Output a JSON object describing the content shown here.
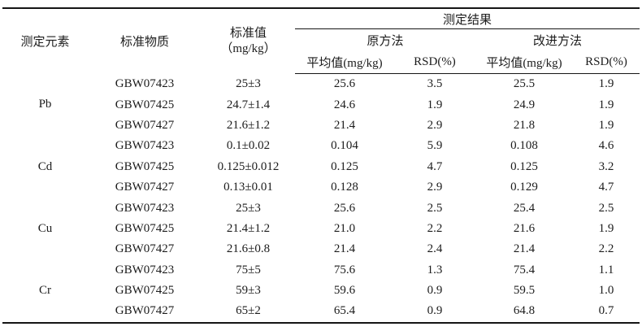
{
  "table": {
    "header": {
      "col_element": "测定元素",
      "col_material": "标准物质",
      "col_standard_line1": "标准值",
      "col_standard_line2": "（mg/kg）",
      "results_group": "测定结果",
      "method_original": "原方法",
      "method_improved": "改进方法",
      "col_mean": "平均值(mg/kg)",
      "col_rsd": "RSD(%)"
    },
    "groups": [
      {
        "element": "Pb",
        "rows": [
          {
            "material": "GBW07423",
            "standard": "25±3",
            "orig_mean": "25.6",
            "orig_rsd": "3.5",
            "impr_mean": "25.5",
            "impr_rsd": "1.9"
          },
          {
            "material": "GBW07425",
            "standard": "24.7±1.4",
            "orig_mean": "24.6",
            "orig_rsd": "1.9",
            "impr_mean": "24.9",
            "impr_rsd": "1.9"
          },
          {
            "material": "GBW07427",
            "standard": "21.6±1.2",
            "orig_mean": "21.4",
            "orig_rsd": "2.9",
            "impr_mean": "21.8",
            "impr_rsd": "1.9"
          }
        ]
      },
      {
        "element": "Cd",
        "rows": [
          {
            "material": "GBW07423",
            "standard": "0.1±0.02",
            "orig_mean": "0.104",
            "orig_rsd": "5.9",
            "impr_mean": "0.108",
            "impr_rsd": "4.6"
          },
          {
            "material": "GBW07425",
            "standard": "0.125±0.012",
            "orig_mean": "0.125",
            "orig_rsd": "4.7",
            "impr_mean": "0.125",
            "impr_rsd": "3.2"
          },
          {
            "material": "GBW07427",
            "standard": "0.13±0.01",
            "orig_mean": "0.128",
            "orig_rsd": "2.9",
            "impr_mean": "0.129",
            "impr_rsd": "4.7"
          }
        ]
      },
      {
        "element": "Cu",
        "rows": [
          {
            "material": "GBW07423",
            "standard": "25±3",
            "orig_mean": "25.6",
            "orig_rsd": "2.5",
            "impr_mean": "25.4",
            "impr_rsd": "2.5"
          },
          {
            "material": "GBW07425",
            "standard": "21.4±1.2",
            "orig_mean": "21.0",
            "orig_rsd": "2.2",
            "impr_mean": "21.6",
            "impr_rsd": "1.9"
          },
          {
            "material": "GBW07427",
            "standard": "21.6±0.8",
            "orig_mean": "21.4",
            "orig_rsd": "2.4",
            "impr_mean": "21.4",
            "impr_rsd": "2.2"
          }
        ]
      },
      {
        "element": "Cr",
        "rows": [
          {
            "material": "GBW07423",
            "standard": "75±5",
            "orig_mean": "75.6",
            "orig_rsd": "1.3",
            "impr_mean": "75.4",
            "impr_rsd": "1.1"
          },
          {
            "material": "GBW07425",
            "standard": "59±3",
            "orig_mean": "59.6",
            "orig_rsd": "0.9",
            "impr_mean": "59.5",
            "impr_rsd": "1.0"
          },
          {
            "material": "GBW07427",
            "standard": "65±2",
            "orig_mean": "65.4",
            "orig_rsd": "0.9",
            "impr_mean": "64.8",
            "impr_rsd": "0.7"
          }
        ]
      }
    ]
  }
}
